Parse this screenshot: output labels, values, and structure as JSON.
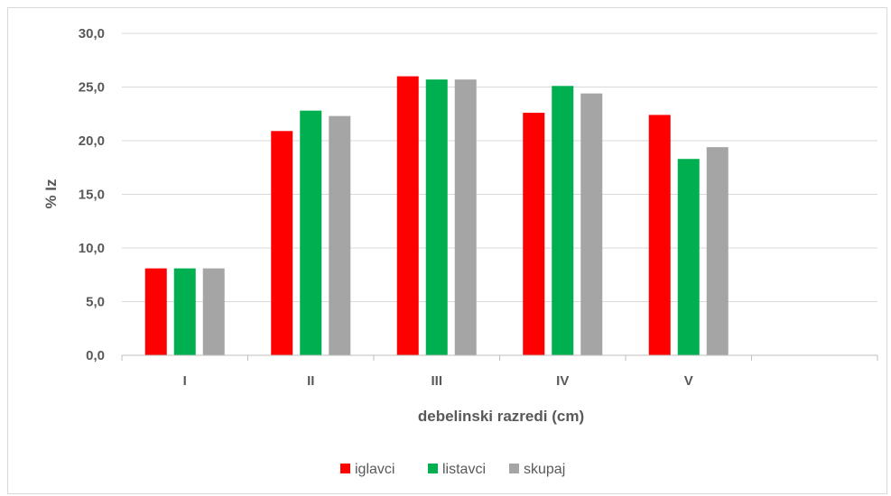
{
  "chart_data": {
    "type": "bar",
    "categories": [
      "I",
      "II",
      "III",
      "IV",
      "V",
      ""
    ],
    "series": [
      {
        "name": "iglavci",
        "values": [
          8.1,
          20.9,
          26.0,
          22.6,
          22.4,
          null
        ]
      },
      {
        "name": "listavci",
        "values": [
          8.1,
          22.8,
          25.7,
          25.1,
          18.3,
          null
        ]
      },
      {
        "name": "skupaj",
        "values": [
          8.1,
          22.3,
          25.7,
          24.4,
          19.4,
          null
        ]
      }
    ],
    "colors": [
      "#ff0000",
      "#00b050",
      "#a5a5a5"
    ],
    "xlabel": "debelinski razredi (cm)",
    "ylabel": "% Iz",
    "ylim": [
      0,
      30
    ],
    "yticks": [
      "0,0",
      "5,0",
      "10,0",
      "15,0",
      "20,0",
      "25,0",
      "30,0"
    ],
    "grid": true,
    "legend_position": "bottom"
  }
}
